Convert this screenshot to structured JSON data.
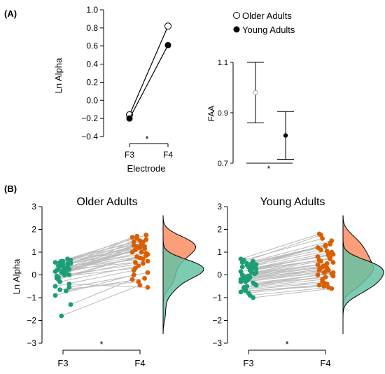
{
  "panel_labels": {
    "a": "(A)",
    "b": "(B)"
  },
  "legend": {
    "older": "Older Adults",
    "young": "Young Adults"
  },
  "sig_marker": "*",
  "colors": {
    "f3": "#1b9e77",
    "f4": "#d95f02",
    "f3_density": "#66c2a5",
    "f4_density": "#fc8d62",
    "lines": "#bbbbbb"
  },
  "chart_data": [
    {
      "type": "line",
      "name": "ln-alpha-by-electrode",
      "x": [
        "F3",
        "F4"
      ],
      "xlabel": "Electrode",
      "ylabel": "Ln Alpha",
      "ylim": [
        -0.4,
        1.0
      ],
      "yticks": [
        "1.0",
        "0.8",
        "0.6",
        "0.4",
        "0.2",
        "0.0",
        "−0.2",
        "−0.4"
      ],
      "series": [
        {
          "name": "Older Adults",
          "marker": "open-circle",
          "values": [
            -0.16,
            0.82
          ],
          "err": [
            0.03,
            0.03
          ]
        },
        {
          "name": "Young Adults",
          "marker": "filled-circle",
          "values": [
            -0.2,
            0.61
          ],
          "err": [
            0.02,
            0.02
          ]
        }
      ],
      "annotation": "*"
    },
    {
      "type": "scatter",
      "name": "faa",
      "ylabel": "FAA",
      "ylim": [
        0.7,
        1.1
      ],
      "yticks": [
        "1.1",
        "0.9",
        "0.7"
      ],
      "series": [
        {
          "name": "Older Adults",
          "marker": "open-circle",
          "value": 0.98,
          "ci": [
            0.86,
            1.1
          ]
        },
        {
          "name": "Young Adults",
          "marker": "filled-circle",
          "value": 0.81,
          "ci": [
            0.715,
            0.905
          ]
        }
      ],
      "annotation": "*"
    },
    {
      "type": "scatter",
      "name": "older-raincloud",
      "title": "Older Adults",
      "ylabel": "Ln Alpha",
      "categories": [
        "F3",
        "F4"
      ],
      "ylim": [
        -3,
        3
      ],
      "yticks": [
        "3",
        "2",
        "1",
        "0",
        "−1",
        "−2",
        "−3"
      ],
      "pairs": [
        [
          0.55,
          1.45
        ],
        [
          0.4,
          1.2
        ],
        [
          0.7,
          1.75
        ],
        [
          0.2,
          1.1
        ],
        [
          0.1,
          1.3
        ],
        [
          0.0,
          0.9
        ],
        [
          -0.1,
          1.6
        ],
        [
          0.3,
          0.7
        ],
        [
          0.5,
          1.0
        ],
        [
          -0.3,
          0.4
        ],
        [
          0.15,
          1.25
        ],
        [
          -0.5,
          0.2
        ],
        [
          0.6,
          1.5
        ],
        [
          0.35,
          0.95
        ],
        [
          -0.05,
          1.1
        ],
        [
          0.45,
          1.35
        ],
        [
          0.25,
          0.6
        ],
        [
          -0.2,
          0.8
        ],
        [
          0.05,
          1.45
        ],
        [
          0.65,
          1.65
        ],
        [
          -0.65,
          -0.3
        ],
        [
          0.3,
          1.15
        ],
        [
          -0.9,
          0.0
        ],
        [
          0.1,
          0.75
        ],
        [
          0.5,
          1.55
        ],
        [
          -0.1,
          0.3
        ],
        [
          0.2,
          1.0
        ],
        [
          -0.4,
          -0.55
        ],
        [
          0.4,
          1.25
        ],
        [
          0.0,
          0.5
        ],
        [
          -1.3,
          -0.2
        ],
        [
          0.55,
          1.2
        ],
        [
          -0.7,
          -0.15
        ],
        [
          0.15,
          1.3
        ],
        [
          -1.8,
          -0.45
        ],
        [
          0.3,
          0.85
        ],
        [
          -0.15,
          0.55
        ],
        [
          0.6,
          1.4
        ],
        [
          -0.55,
          0.1
        ],
        [
          0.25,
          1.7
        ]
      ],
      "annotation": "*"
    },
    {
      "type": "scatter",
      "name": "young-raincloud",
      "title": "Young Adults",
      "categories": [
        "F3",
        "F4"
      ],
      "ylim": [
        -3,
        3
      ],
      "yticks": [
        "3",
        "2",
        "1",
        "0",
        "−1",
        "−2",
        "−3"
      ],
      "pairs": [
        [
          0.7,
          1.8
        ],
        [
          0.5,
          1.3
        ],
        [
          0.3,
          1.0
        ],
        [
          0.0,
          0.6
        ],
        [
          -0.2,
          0.3
        ],
        [
          -0.4,
          0.1
        ],
        [
          -0.6,
          -0.3
        ],
        [
          0.2,
          0.9
        ],
        [
          0.45,
          1.2
        ],
        [
          -0.1,
          0.4
        ],
        [
          0.1,
          0.75
        ],
        [
          -0.3,
          0.2
        ],
        [
          -0.5,
          -0.1
        ],
        [
          0.6,
          1.5
        ],
        [
          0.35,
          1.1
        ],
        [
          -0.8,
          -0.4
        ],
        [
          0.05,
          0.55
        ],
        [
          -0.15,
          0.35
        ],
        [
          0.25,
          0.85
        ],
        [
          -0.45,
          0.0
        ],
        [
          -0.7,
          -0.5
        ],
        [
          0.4,
          1.4
        ],
        [
          0.15,
          0.65
        ],
        [
          -0.25,
          0.15
        ],
        [
          -0.35,
          0.05
        ],
        [
          0.55,
          1.75
        ],
        [
          -0.05,
          0.5
        ],
        [
          0.3,
          0.9
        ],
        [
          -0.55,
          -0.2
        ],
        [
          -0.9,
          -0.55
        ],
        [
          0.1,
          0.45
        ],
        [
          -0.65,
          -0.35
        ],
        [
          0.2,
          0.7
        ],
        [
          -0.2,
          0.25
        ],
        [
          0.45,
          1.25
        ],
        [
          -1.0,
          -0.6
        ],
        [
          0.0,
          0.3
        ],
        [
          0.35,
          1.05
        ],
        [
          -0.4,
          -0.05
        ],
        [
          0.65,
          1.6
        ],
        [
          -0.1,
          0.2
        ],
        [
          0.25,
          0.8
        ],
        [
          -0.3,
          0.1
        ],
        [
          0.5,
          1.35
        ],
        [
          -0.75,
          -0.45
        ]
      ],
      "annotation": "*"
    }
  ]
}
